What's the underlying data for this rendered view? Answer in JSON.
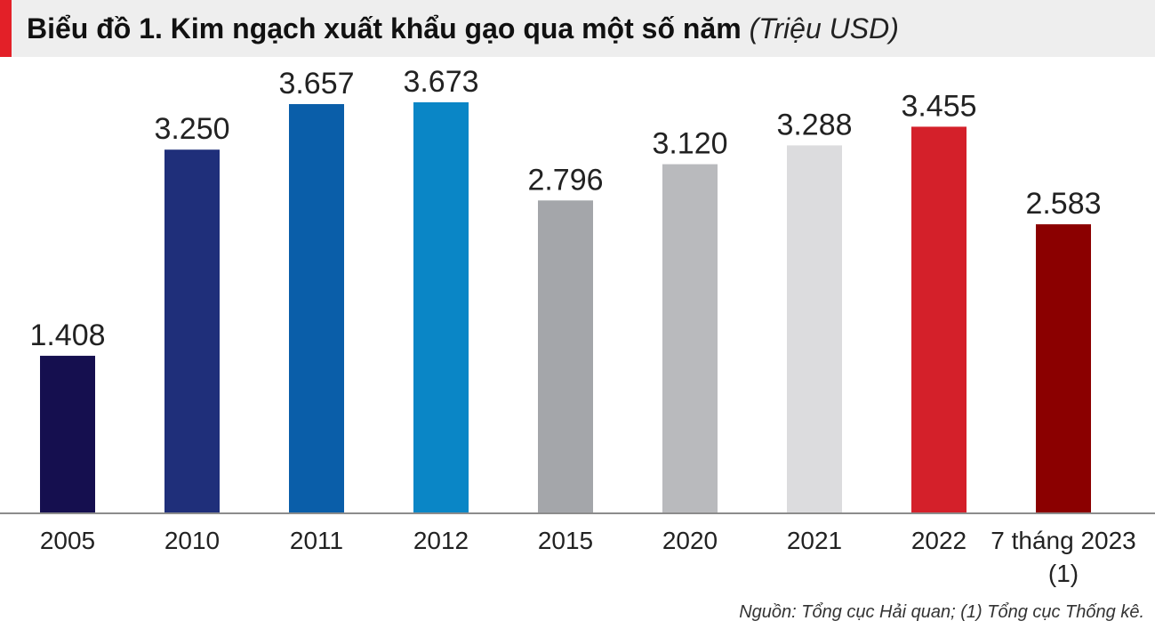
{
  "header": {
    "title": "Biểu đồ 1. Kim ngạch xuất khẩu gạo qua một số năm",
    "unit": "(Triệu USD)"
  },
  "footer": {
    "source": "Nguồn: Tổng cục Hải quan; (1) Tổng cục Thống kê."
  },
  "colors": {
    "accent": "#e32028",
    "title_background": "#eeeeee",
    "axis": "#8c8c8c"
  },
  "chart_data": {
    "type": "bar",
    "title": "Biểu đồ 1. Kim ngạch xuất khẩu gạo qua một số năm",
    "unit": "(Triệu USD)",
    "categories": [
      "2005",
      "2010",
      "2011",
      "2012",
      "2015",
      "2020",
      "2021",
      "2022",
      "7 tháng 2023"
    ],
    "category_notes": [
      "",
      "",
      "",
      "",
      "",
      "",
      "",
      "",
      "(1)"
    ],
    "values": [
      1408,
      3250,
      3657,
      3673,
      2796,
      3120,
      3288,
      3455,
      2583
    ],
    "value_labels": [
      "1.408",
      "3.250",
      "3.657",
      "3.673",
      "2.796",
      "3.120",
      "3.288",
      "3.455",
      "2.583"
    ],
    "bar_colors": [
      "#150f4f",
      "#1f2f7a",
      "#0a5ea9",
      "#0a86c6",
      "#a4a6aa",
      "#b9babd",
      "#dcdcde",
      "#d4202a",
      "#8b0000"
    ],
    "ylim": [
      0,
      3673
    ],
    "grid": false,
    "legend": "none"
  }
}
